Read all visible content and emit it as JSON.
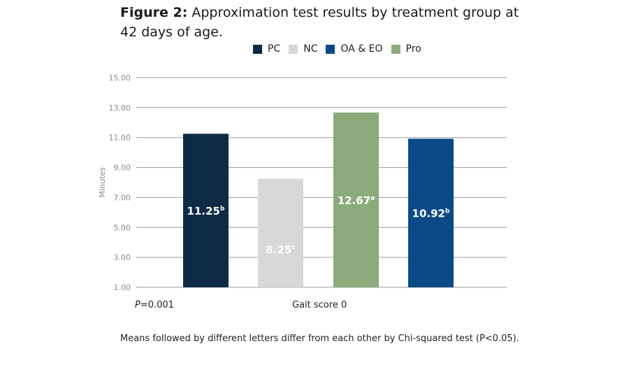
{
  "figure_label": "Figure 2:",
  "title_text": "Approximation test results by treatment group at 42 days of age.",
  "pvalue_prefix": "P",
  "pvalue_rest": "=0.001",
  "footnote": "Means followed by different letters differ from each other by Chi-squared test (P<0.05).",
  "chart_data": {
    "type": "bar",
    "categories": [
      "PC",
      "NC",
      "Pro",
      "OA & EO"
    ],
    "series": [
      {
        "name": "PC",
        "value": 11.25,
        "letter": "b",
        "label": "11.25",
        "color": "#0d2b45",
        "label_color": "#ffffff"
      },
      {
        "name": "NC",
        "value": 8.25,
        "letter": "c",
        "label": "8.25",
        "color": "#d7d8d9",
        "label_color": "#ffffff"
      },
      {
        "name": "Pro",
        "value": 12.67,
        "letter": "a",
        "label": "12.67",
        "color": "#8caa7c",
        "label_color": "#ffffff"
      },
      {
        "name": "OA & EO",
        "value": 10.92,
        "letter": "b",
        "label": "10.92",
        "color": "#0b4a86",
        "label_color": "#ffffff"
      }
    ],
    "legend_order": [
      "PC",
      "NC",
      "OA & EO",
      "Pro"
    ],
    "xlabel": "Gait score 0",
    "ylabel": "Minutes",
    "ylim": [
      1,
      15
    ],
    "yticks": [
      "1.00",
      "3.00",
      "5.00",
      "7.00",
      "9.00",
      "11.00",
      "13.00",
      "15.00"
    ],
    "grid": true,
    "legend_position": "top"
  }
}
